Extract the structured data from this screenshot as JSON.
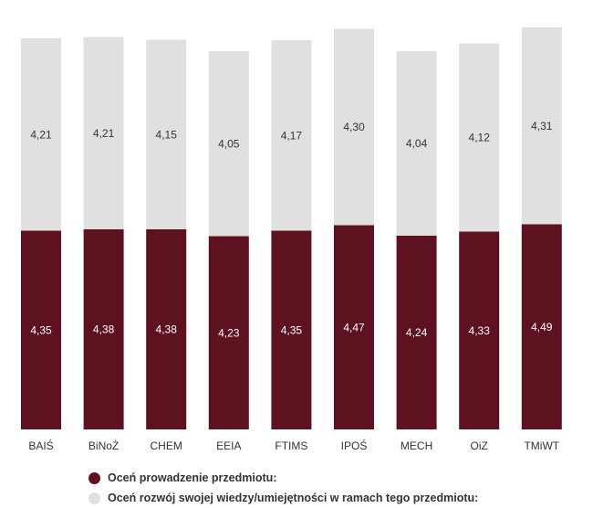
{
  "chart_data": {
    "type": "bar",
    "stacked": true,
    "categories": [
      "BAIŚ",
      "BiNoŻ",
      "CHEM",
      "EEIA",
      "FTIMS",
      "IPOŚ",
      "MECH",
      "OiZ",
      "TMiWT"
    ],
    "series": [
      {
        "name": "Oceń prowadzenie przedmiotu:",
        "color": "#5e1220",
        "values": [
          4.35,
          4.38,
          4.38,
          4.23,
          4.35,
          4.47,
          4.24,
          4.33,
          4.49
        ],
        "labels": [
          "4,35",
          "4,38",
          "4,38",
          "4,23",
          "4,35",
          "4,47",
          "4,24",
          "4,33",
          "4,49"
        ]
      },
      {
        "name": "Oceń rozwój swojej wiedzy/umiejętności w ramach tego przedmiotu:",
        "color": "#e0e0e0",
        "values": [
          4.21,
          4.21,
          4.15,
          4.05,
          4.17,
          4.3,
          4.04,
          4.12,
          4.31
        ],
        "labels": [
          "4,21",
          "4,21",
          "4,15",
          "4,05",
          "4,17",
          "4,30",
          "4,04",
          "4,12",
          "4,31"
        ]
      }
    ],
    "ylim": [
      0,
      9.2
    ],
    "grid": false,
    "legend_position": "bottom"
  }
}
